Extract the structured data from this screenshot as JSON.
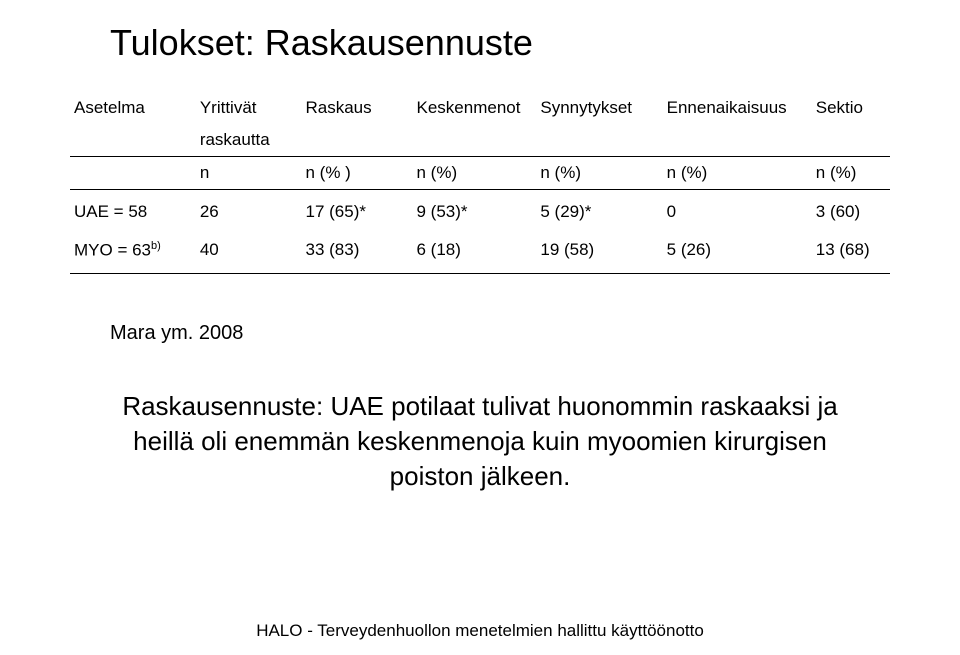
{
  "title": "Tulokset: Raskausennuste",
  "table": {
    "header_row1": {
      "c0": "Asetelma",
      "c1": "Yrittivät",
      "c2": "Raskaus",
      "c3": "Keskenmenot",
      "c4": "Synnytykset",
      "c5": "Ennenaikaisuus",
      "c6": "Sektio"
    },
    "header_row1b": {
      "c1": "raskautta"
    },
    "header_row2": {
      "c1": "n",
      "c2": "n (% )",
      "c3": "n (%)",
      "c4": "n (%)",
      "c5": "n (%)",
      "c6": "n (%)"
    },
    "rows": [
      {
        "label": "UAE = 58",
        "c1": "26",
        "c2": "17 (65)*",
        "c3": "9 (53)*",
        "c4": "5 (29)*",
        "c5": "0",
        "c6": "3 (60)"
      },
      {
        "label_prefix": "MYO = 63",
        "label_sup": "b)",
        "c1": "40",
        "c2": "33 (83)",
        "c3": "6 (18)",
        "c4": "19 (58)",
        "c5": "5 (26)",
        "c6": "13 (68)"
      }
    ]
  },
  "citation": "Mara ym. 2008",
  "conclusion": "Raskausennuste: UAE potilaat tulivat huonommin raskaaksi ja heillä oli enemmän keskenmenoja kuin myoomien kirurgisen poiston jälkeen.",
  "footer": "HALO - Terveydenhuollon menetelmien hallittu käyttöönotto"
}
